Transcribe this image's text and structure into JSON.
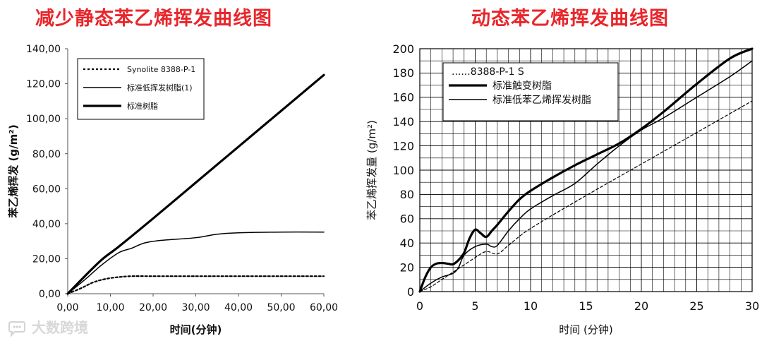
{
  "titles": {
    "left": "减少静态苯乙烯挥发曲线图",
    "right": "动态苯乙烯挥发曲线图"
  },
  "watermark": {
    "text": "大数跨境",
    "icon": "speech-bubble-logo-icon"
  },
  "chart_data": [
    {
      "type": "line",
      "title": "减少静态苯乙烯挥发曲线图",
      "xlabel": "时间(分钟)",
      "ylabel": "苯乙烯挥发  (g/m²)",
      "xlim": [
        0,
        60
      ],
      "ylim": [
        0,
        140
      ],
      "xticks": [
        "0,00",
        "10,00",
        "20,00",
        "30,00",
        "40,00",
        "50,00",
        "60,00"
      ],
      "yticks": [
        "0,00",
        "20,00",
        "40,00",
        "60,00",
        "80,00",
        "100,00",
        "120,00",
        "140,00"
      ],
      "grid": false,
      "legend_position": "top-left",
      "series": [
        {
          "name": "Synolite 8388-P-1",
          "style": "dotted",
          "points": [
            [
              0,
              0
            ],
            [
              3,
              3
            ],
            [
              6,
              6.5
            ],
            [
              9,
              8.5
            ],
            [
              12,
              9.5
            ],
            [
              15,
              10
            ],
            [
              20,
              10
            ],
            [
              30,
              10
            ],
            [
              40,
              10
            ],
            [
              50,
              10
            ],
            [
              60,
              10
            ]
          ]
        },
        {
          "name": "标准低挥发树脂(1)",
          "style": "thin",
          "points": [
            [
              0,
              0
            ],
            [
              4,
              8
            ],
            [
              8,
              16.5
            ],
            [
              12,
              23.5
            ],
            [
              15,
              26
            ],
            [
              18,
              29
            ],
            [
              22,
              30.5
            ],
            [
              30,
              32
            ],
            [
              35,
              34
            ],
            [
              40,
              34.8
            ],
            [
              50,
              35.2
            ],
            [
              60,
              35.2
            ]
          ]
        },
        {
          "name": "标准树脂",
          "style": "thick",
          "points": [
            [
              0,
              0
            ],
            [
              4,
              10
            ],
            [
              8,
              19.5
            ],
            [
              12,
              27
            ],
            [
              20,
              43
            ],
            [
              30,
              63.5
            ],
            [
              40,
              84
            ],
            [
              50,
              104.5
            ],
            [
              60,
              125
            ]
          ]
        }
      ]
    },
    {
      "type": "line",
      "title": "动态苯乙烯挥发曲线图",
      "xlabel": "时间 (分钟)",
      "ylabel": "苯乙烯挥发量 (g/m²)",
      "xlim": [
        0,
        30
      ],
      "ylim": [
        0,
        200
      ],
      "xticks": [
        "0",
        "5",
        "10",
        "15",
        "20",
        "25",
        "30"
      ],
      "yticks": [
        "0",
        "20",
        "40",
        "60",
        "80",
        "100",
        "120",
        "140",
        "160",
        "180",
        "200"
      ],
      "grid": true,
      "legend_position": "top-left",
      "series": [
        {
          "name": "......8388-P-1 S",
          "style": "dashed",
          "points": [
            [
              0,
              0
            ],
            [
              1,
              4
            ],
            [
              2,
              10
            ],
            [
              3,
              16
            ],
            [
              4,
              22
            ],
            [
              5,
              28
            ],
            [
              6,
              33
            ],
            [
              7,
              31
            ],
            [
              8,
              38
            ],
            [
              10,
              52
            ],
            [
              15,
              79
            ],
            [
              20,
              105
            ],
            [
              25,
              131
            ],
            [
              30,
              157
            ]
          ]
        },
        {
          "name": "标准触变树脂",
          "style": "thick",
          "points": [
            [
              0,
              0
            ],
            [
              0.5,
              12
            ],
            [
              1,
              20
            ],
            [
              1.5,
              23
            ],
            [
              2,
              23.5
            ],
            [
              2.5,
              23
            ],
            [
              3,
              22.5
            ],
            [
              3.5,
              26
            ],
            [
              4,
              32
            ],
            [
              4.5,
              44
            ],
            [
              5,
              51
            ],
            [
              5.5,
              48
            ],
            [
              6,
              45
            ],
            [
              6.5,
              50
            ],
            [
              7,
              55
            ],
            [
              8,
              66
            ],
            [
              9,
              76
            ],
            [
              10,
              83
            ],
            [
              12,
              94
            ],
            [
              14,
              104
            ],
            [
              16,
              113
            ],
            [
              18,
              122
            ],
            [
              20,
              134
            ],
            [
              22,
              148
            ],
            [
              25,
              171
            ],
            [
              28,
              192
            ],
            [
              30,
              206
            ]
          ]
        },
        {
          "name": "标准低苯乙烯挥发树脂",
          "style": "thin",
          "points": [
            [
              0,
              0
            ],
            [
              1,
              7
            ],
            [
              2,
              12
            ],
            [
              3,
              15
            ],
            [
              3.5,
              20
            ],
            [
              4,
              30
            ],
            [
              5,
              37
            ],
            [
              6,
              39
            ],
            [
              6.5,
              37
            ],
            [
              7,
              38
            ],
            [
              8,
              50
            ],
            [
              9,
              60
            ],
            [
              10,
              68
            ],
            [
              12,
              79
            ],
            [
              14,
              89
            ],
            [
              16,
              105
            ],
            [
              18,
              120
            ],
            [
              20,
              133
            ],
            [
              22,
              143
            ],
            [
              25,
              160
            ],
            [
              28,
              177
            ],
            [
              30,
              190
            ]
          ]
        }
      ]
    }
  ]
}
